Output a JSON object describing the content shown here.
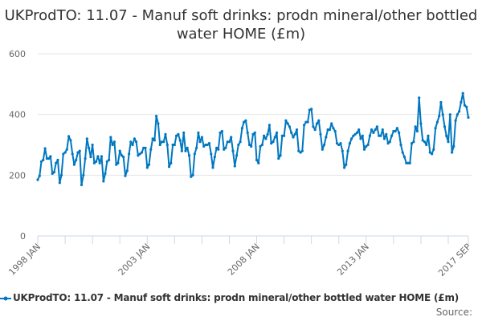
{
  "chart_data": {
    "type": "line",
    "title": "UKProdTO: 11.07 - Manuf soft drinks: prodn mineral/other bottled water HOME (£m)",
    "xlabel": "",
    "ylabel": "",
    "x_start": "1998 JAN",
    "x_end": "2017 SEP",
    "frequency": "monthly",
    "x_tick_labels": [
      "1998 JAN",
      "2003 JAN",
      "2008 JAN",
      "2013 JAN",
      "2017 SEP"
    ],
    "y_tick_labels": [
      "0",
      "200",
      "400",
      "600"
    ],
    "ylim": [
      0,
      600
    ],
    "grid": true,
    "legend_position": "bottom",
    "series": [
      {
        "name": "UKProdTO: 11.07 - Manuf soft drinks: prodn mineral/other bottled water HOME (£m)",
        "color": "#0077c0",
        "values": [
          185,
          198,
          245,
          250,
          288,
          255,
          255,
          262,
          205,
          210,
          240,
          250,
          175,
          200,
          270,
          275,
          285,
          328,
          315,
          270,
          235,
          250,
          275,
          280,
          168,
          200,
          255,
          320,
          290,
          260,
          300,
          240,
          245,
          262,
          240,
          262,
          180,
          205,
          245,
          250,
          325,
          300,
          310,
          235,
          240,
          280,
          265,
          260,
          198,
          215,
          270,
          310,
          300,
          320,
          310,
          265,
          270,
          275,
          290,
          290,
          225,
          235,
          285,
          320,
          315,
          395,
          370,
          300,
          310,
          310,
          335,
          300,
          228,
          240,
          300,
          300,
          330,
          335,
          315,
          280,
          340,
          280,
          290,
          265,
          195,
          200,
          270,
          290,
          340,
          310,
          325,
          295,
          300,
          300,
          305,
          270,
          225,
          260,
          290,
          285,
          340,
          345,
          285,
          290,
          310,
          310,
          325,
          280,
          230,
          265,
          300,
          310,
          355,
          375,
          380,
          340,
          300,
          295,
          335,
          340,
          250,
          240,
          295,
          300,
          330,
          320,
          335,
          365,
          305,
          310,
          325,
          340,
          255,
          265,
          330,
          330,
          380,
          370,
          360,
          340,
          325,
          335,
          350,
          280,
          275,
          280,
          365,
          375,
          375,
          415,
          418,
          360,
          350,
          370,
          380,
          335,
          285,
          300,
          325,
          350,
          350,
          370,
          355,
          345,
          305,
          300,
          305,
          280,
          225,
          235,
          280,
          305,
          320,
          330,
          335,
          340,
          350,
          320,
          330,
          285,
          295,
          300,
          330,
          350,
          340,
          350,
          360,
          330,
          330,
          350,
          320,
          335,
          305,
          310,
          330,
          345,
          345,
          355,
          340,
          300,
          275,
          260,
          240,
          240,
          240,
          305,
          310,
          360,
          345,
          455,
          370,
          315,
          310,
          300,
          330,
          275,
          270,
          285,
          355,
          375,
          395,
          440,
          400,
          360,
          330,
          310,
          400,
          275,
          295,
          380,
          400,
          410,
          440,
          470,
          430,
          425,
          390
        ]
      }
    ]
  },
  "source_label": "Source:"
}
